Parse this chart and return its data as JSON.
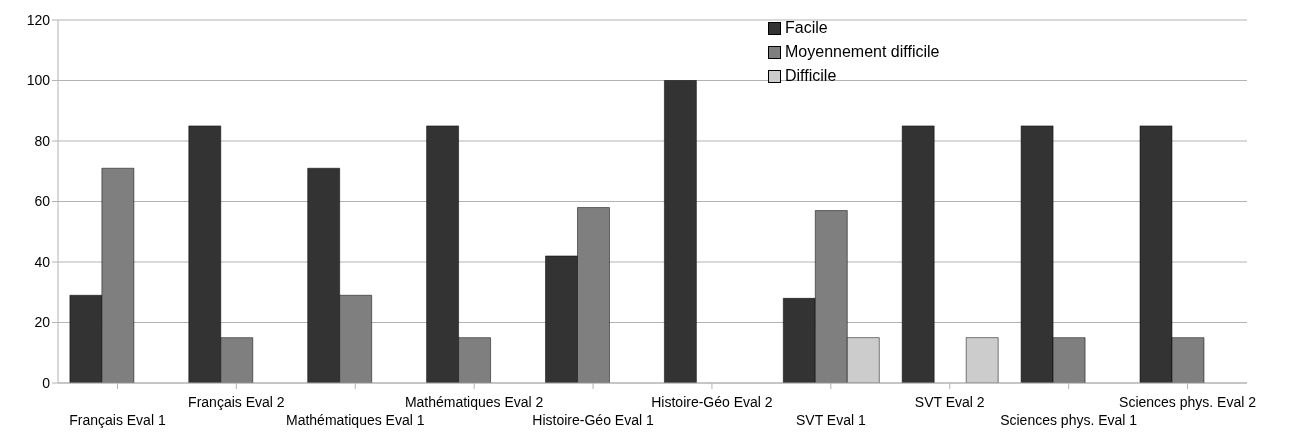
{
  "chart_data": {
    "type": "bar",
    "categories": [
      "Français Eval 1",
      "Français Eval 2",
      "Mathématiques Eval 1",
      "Mathématiques Eval 2",
      "Histoire-Géo Eval 1",
      "Histoire-Géo Eval 2",
      "SVT Eval 1",
      "SVT Eval 2",
      "Sciences phys. Eval 1",
      "Sciences phys. Eval 2"
    ],
    "series": [
      {
        "name": "Facile",
        "color": "#333333",
        "values": [
          29,
          85,
          71,
          85,
          42,
          100,
          28,
          85,
          85,
          85
        ]
      },
      {
        "name": "Moyennement difficile",
        "color": "#7f7f7f",
        "values": [
          71,
          15,
          29,
          15,
          58,
          null,
          57,
          null,
          15,
          15
        ]
      },
      {
        "name": "Difficile",
        "color": "#cccccc",
        "values": [
          null,
          null,
          null,
          null,
          null,
          null,
          15,
          15,
          null,
          null
        ]
      }
    ],
    "ylim": [
      0,
      120
    ],
    "yticks": [
      0,
      20,
      40,
      60,
      80,
      100,
      120
    ],
    "grid": "y",
    "legend": "top"
  }
}
